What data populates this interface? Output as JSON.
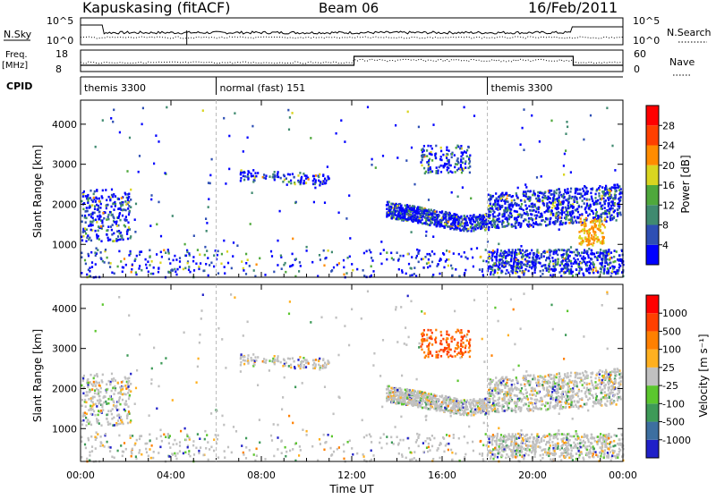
{
  "header": {
    "station": "Kapuskasing (fitACF)",
    "beam": "Beam 06",
    "date": "16/Feb/2011"
  },
  "nsky_panel": {
    "left_label": "N.Sky",
    "right_label": "N.Search",
    "ticks": [
      "10^5",
      "10^0"
    ]
  },
  "freq_panel": {
    "left_label": "Freq.",
    "left_unit": "[MHz]",
    "left_ticks": [
      "18",
      "8"
    ],
    "right_label": "Nave",
    "right_ticks": [
      "60",
      "0"
    ]
  },
  "cpid": {
    "label": "CPID",
    "segments": [
      {
        "name": "themis 3300",
        "start_h": 0,
        "end_h": 6
      },
      {
        "name": "normal (fast) 151",
        "start_h": 6,
        "end_h": 18
      },
      {
        "name": "themis 3300",
        "start_h": 18,
        "end_h": 24
      }
    ]
  },
  "colors": {
    "power_scale": [
      "#0000ff",
      "#2e4fb4",
      "#408a70",
      "#4fa83c",
      "#d9d520",
      "#ff8c00",
      "#ff4000",
      "#ff0000"
    ],
    "velocity_scale": [
      "#2020c8",
      "#3d6fa0",
      "#3e9a58",
      "#5bc62e",
      "#c0c0c0",
      "#ffb020",
      "#ff8000",
      "#ff4000",
      "#ff0000"
    ]
  },
  "chart_data": [
    {
      "type": "heatmap",
      "title": "Power",
      "xlabel": "Time UT",
      "ylabel": "Slant Range [km]",
      "xlim": [
        0,
        24
      ],
      "ylim": [
        180,
        4600
      ],
      "x_ticks": [
        "00:00",
        "04:00",
        "08:00",
        "12:00",
        "16:00",
        "20:00",
        "00:00"
      ],
      "y_ticks": [
        1000,
        2000,
        3000,
        4000
      ],
      "colorbar": {
        "label": "Power [dB]",
        "ticks": [
          4,
          8,
          12,
          16,
          20,
          24,
          28
        ],
        "range": [
          0,
          32
        ]
      }
    },
    {
      "type": "heatmap",
      "title": "Velocity",
      "xlabel": "Time UT",
      "ylabel": "Slant Range [km]",
      "xlim": [
        0,
        24
      ],
      "ylim": [
        180,
        4600
      ],
      "x_ticks": [
        "00:00",
        "04:00",
        "08:00",
        "12:00",
        "16:00",
        "20:00",
        "00:00"
      ],
      "y_ticks": [
        1000,
        2000,
        3000,
        4000
      ],
      "colorbar": {
        "label": "Velocity [m s⁻¹]",
        "ticks": [
          1000,
          500,
          100,
          25,
          -25,
          -100,
          -500,
          -1000
        ]
      }
    }
  ]
}
